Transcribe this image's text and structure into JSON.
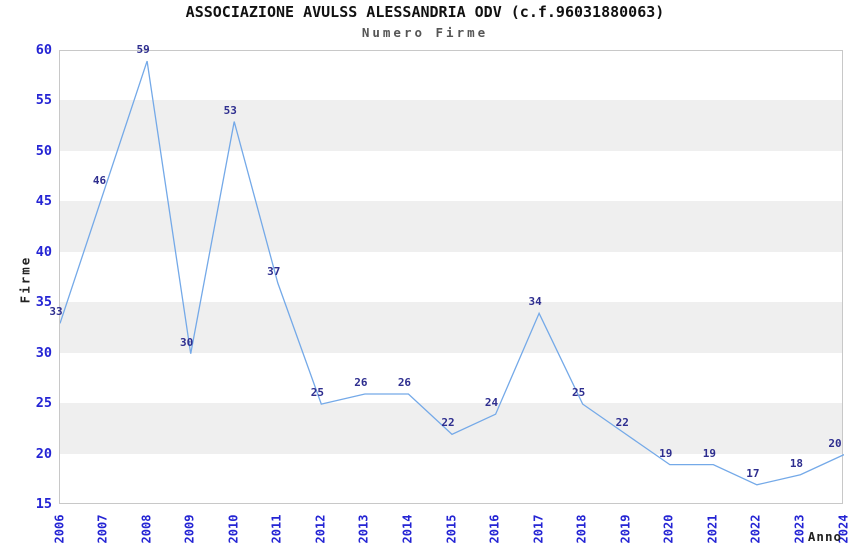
{
  "title": "ASSOCIAZIONE AVULSS ALESSANDRIA ODV (c.f.96031880063)",
  "subtitle": "Numero Firme",
  "chart_data": {
    "type": "line",
    "categories": [
      "2006",
      "2007",
      "2008",
      "2009",
      "2010",
      "2011",
      "2012",
      "2013",
      "2014",
      "2015",
      "2016",
      "2017",
      "2018",
      "2019",
      "2020",
      "2021",
      "2022",
      "2023",
      "2024"
    ],
    "values": [
      33,
      46,
      59,
      30,
      53,
      37,
      25,
      26,
      26,
      22,
      24,
      34,
      25,
      22,
      19,
      19,
      17,
      18,
      20
    ],
    "title": "ASSOCIAZIONE AVULSS ALESSANDRIA ODV (c.f.96031880063)",
    "subtitle": "Numero Firme",
    "xlabel": "Anno",
    "ylabel": "Firme",
    "ylim": [
      15,
      60
    ],
    "ytick_step": 5,
    "yticks": [
      15,
      20,
      25,
      30,
      35,
      40,
      45,
      50,
      55,
      60
    ],
    "grid": "alternating-horizontal-bands",
    "legend": "none",
    "data_labels": true
  },
  "colors": {
    "line": "#74a9e8",
    "axis_tick_label": "#2424d4",
    "data_label": "#2e2e8f",
    "band_fill": "#efefef",
    "plot_border": "#c8c8c8",
    "title": "#111111",
    "subtitle": "#555555",
    "axis_title": "#222222",
    "background": "#ffffff"
  }
}
